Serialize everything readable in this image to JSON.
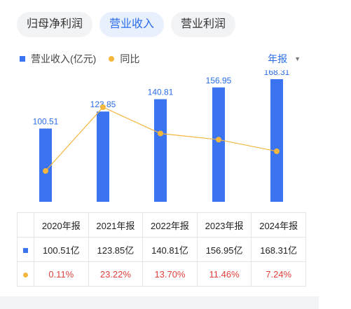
{
  "tabs": [
    {
      "label": "归母净利润",
      "active": false
    },
    {
      "label": "营业收入",
      "active": true
    },
    {
      "label": "营业利润",
      "active": false
    }
  ],
  "legend": {
    "bar_label": "营业收入(亿元)",
    "line_label": "同比"
  },
  "period_selector": {
    "label": "年报"
  },
  "colors": {
    "bar": "#3b74f0",
    "line": "#f4b63c",
    "accent": "#2b6de8",
    "negative_red": "#e0413b"
  },
  "chart_data": {
    "type": "bar",
    "categories": [
      "2020年报",
      "2021年报",
      "2022年报",
      "2023年报",
      "2024年报"
    ],
    "series": [
      {
        "name": "营业收入(亿元)",
        "type": "bar",
        "values": [
          100.51,
          123.85,
          140.81,
          156.95,
          168.31
        ]
      },
      {
        "name": "同比",
        "type": "line",
        "values": [
          0.11,
          23.22,
          13.7,
          11.46,
          7.24
        ]
      }
    ],
    "data_labels": [
      "100.51",
      "123.85",
      "140.81",
      "156.95",
      "168.31"
    ],
    "ylim": [
      0,
      170
    ]
  },
  "table": {
    "headers": [
      "2020年报",
      "2021年报",
      "2022年报",
      "2023年报",
      "2024年报"
    ],
    "revenue_row": [
      "100.51亿",
      "123.85亿",
      "140.81亿",
      "156.95亿",
      "168.31亿"
    ],
    "yoy_row": [
      "0.11%",
      "23.22%",
      "13.70%",
      "11.46%",
      "7.24%"
    ]
  }
}
